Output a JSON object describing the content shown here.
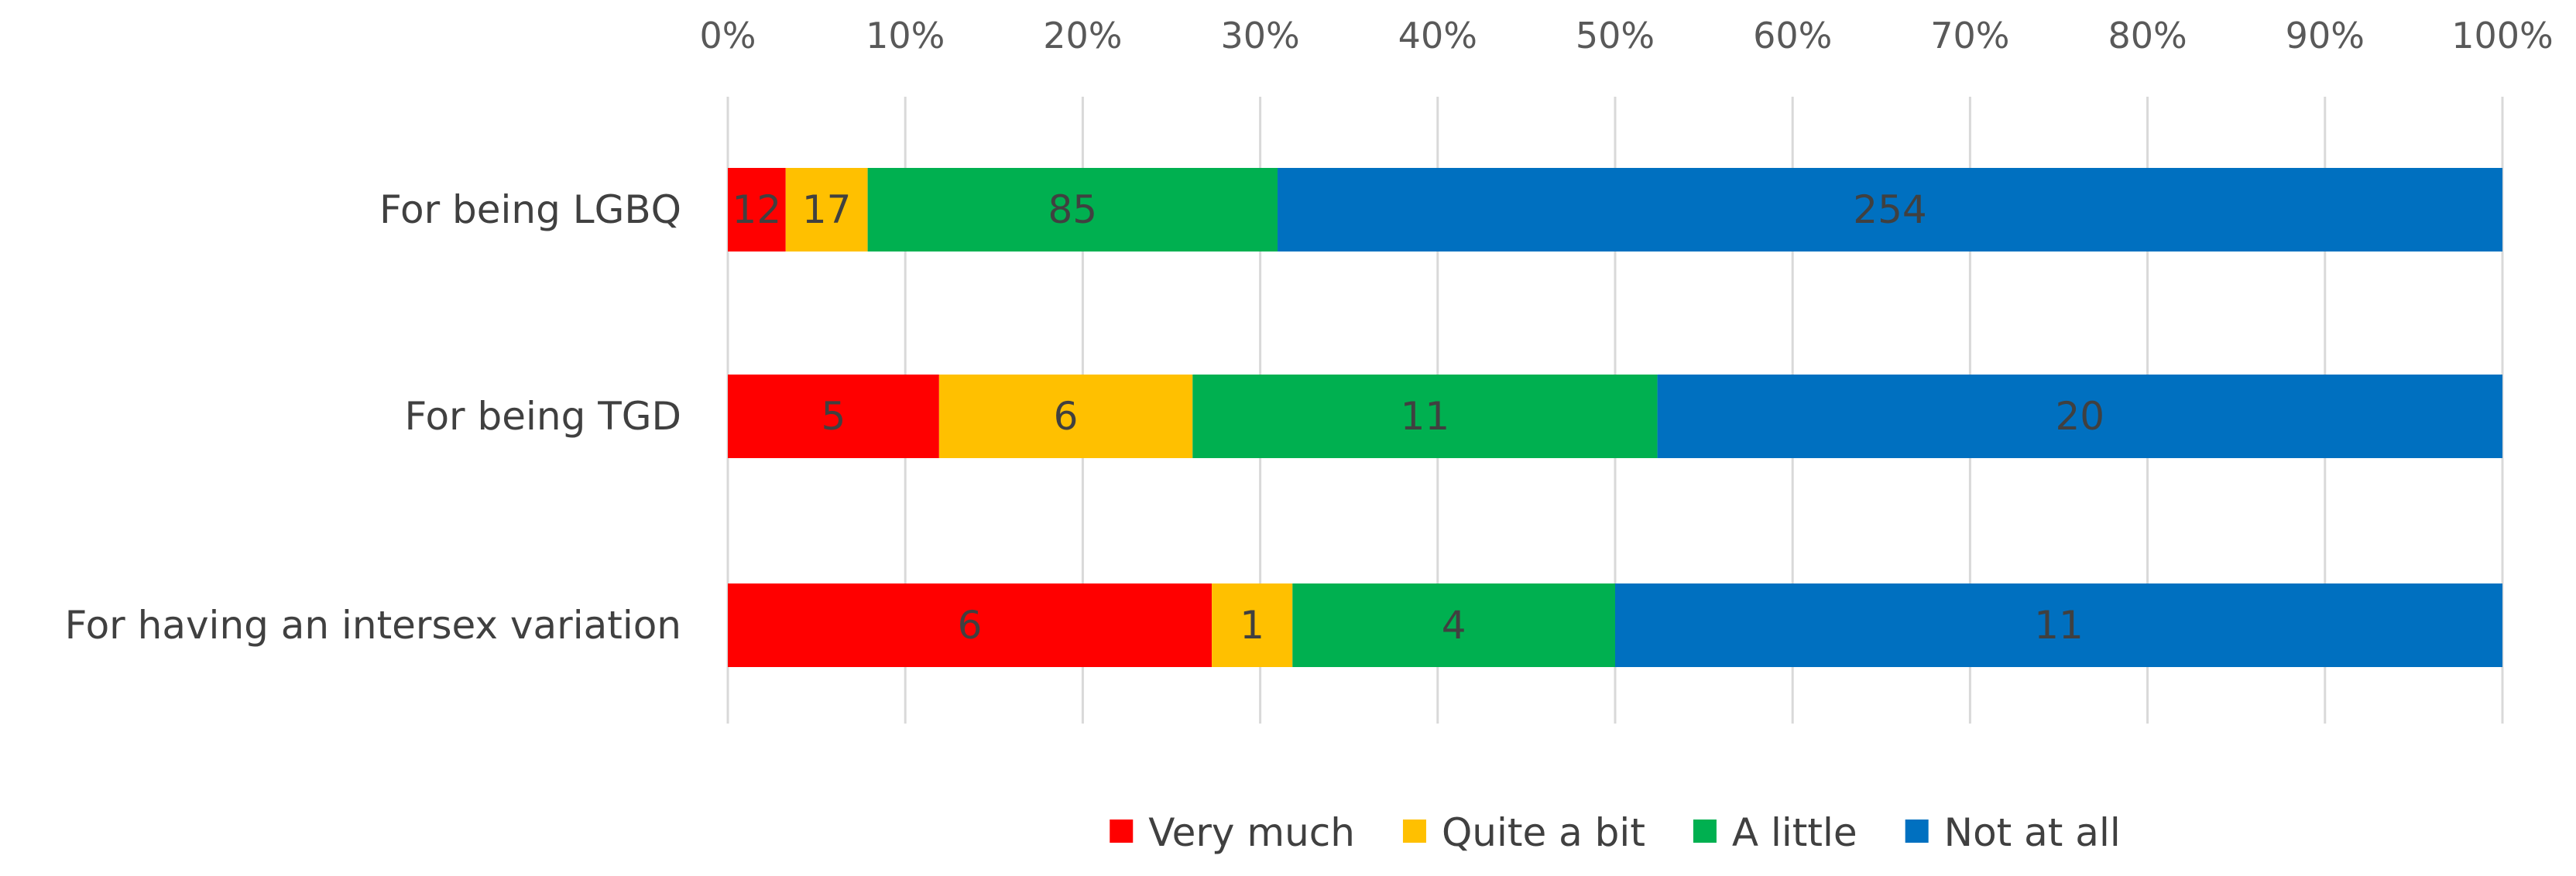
{
  "chart_data": {
    "type": "bar",
    "orientation": "horizontal",
    "stacking": "percent",
    "title": "",
    "xlabel": "",
    "ylabel": "",
    "xlim": [
      0,
      100
    ],
    "x_ticks": [
      "0%",
      "10%",
      "20%",
      "30%",
      "40%",
      "50%",
      "60%",
      "70%",
      "80%",
      "90%",
      "100%"
    ],
    "x_tick_values": [
      0,
      10,
      20,
      30,
      40,
      50,
      60,
      70,
      80,
      90,
      100
    ],
    "x_axis_position": "top",
    "grid": "vertical",
    "legend_position": "bottom",
    "categories": [
      "For being LGBQ",
      "For being TGD",
      "For having an intersex variation"
    ],
    "series": [
      {
        "name": "Very much",
        "color": "#ff0000",
        "values": [
          12,
          5,
          6
        ]
      },
      {
        "name": "Quite a bit",
        "color": "#ffc000",
        "values": [
          17,
          6,
          1
        ]
      },
      {
        "name": "A little",
        "color": "#00b050",
        "values": [
          85,
          11,
          4
        ]
      },
      {
        "name": "Not at all",
        "color": "#0070c0",
        "values": [
          254,
          20,
          11
        ]
      }
    ]
  }
}
